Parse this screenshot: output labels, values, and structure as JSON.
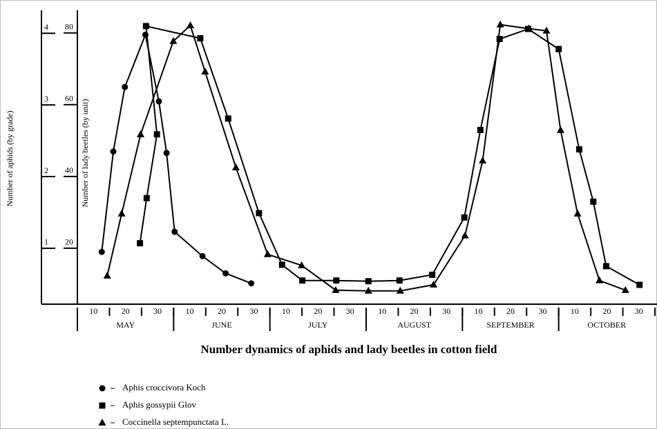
{
  "chart_data": {
    "type": "line",
    "title": "Number dynamics of aphids and lady beetles in cotton field",
    "ylabel": "Number of aphids (by grade)",
    "y2label": "Number of lady beetles (by unit)",
    "xlim": [
      0,
      18
    ],
    "xticks": [
      {
        "value": 0.5,
        "label": "10"
      },
      {
        "value": 1.5,
        "label": "20"
      },
      {
        "value": 2.5,
        "label": "30"
      },
      {
        "value": 3.5,
        "label": "10"
      },
      {
        "value": 4.5,
        "label": "20"
      },
      {
        "value": 5.5,
        "label": "30"
      },
      {
        "value": 6.5,
        "label": "10"
      },
      {
        "value": 7.5,
        "label": "20"
      },
      {
        "value": 8.5,
        "label": "30"
      },
      {
        "value": 9.5,
        "label": "10"
      },
      {
        "value": 10.5,
        "label": "20"
      },
      {
        "value": 11.5,
        "label": "30"
      },
      {
        "value": 12.5,
        "label": "10"
      },
      {
        "value": 13.5,
        "label": "20"
      },
      {
        "value": 14.5,
        "label": "30"
      },
      {
        "value": 15.5,
        "label": "10"
      },
      {
        "value": 16.5,
        "label": "20"
      },
      {
        "value": 17.5,
        "label": "30"
      }
    ],
    "months": [
      "MAY",
      "JUNE",
      "JULY",
      "AUGUST",
      "SEPTEMBER",
      "OCTOBER"
    ],
    "ylim": [
      0.22,
      4.32
    ],
    "yticks": [
      1,
      2,
      3,
      4
    ],
    "y2lim": [
      4.4,
      86.3
    ],
    "y2ticks": [
      20,
      40,
      60,
      80
    ],
    "series": [
      {
        "name": "Aphis croccivora Koch",
        "color": "#000000",
        "marker": "circle",
        "x": [
          0.76,
          1.12,
          1.48,
          2.12,
          2.54,
          2.78,
          3.03,
          3.9,
          4.62,
          5.42
        ],
        "values": [
          0.95,
          2.35,
          3.25,
          3.98,
          3.05,
          2.33,
          1.23,
          0.89,
          0.65,
          0.51
        ]
      },
      {
        "name": "Aphis gossypii Glov",
        "color": "#000000",
        "marker": "square",
        "x": [
          1.95,
          2.16,
          2.48,
          2.14,
          3.83,
          4.7,
          5.66,
          6.38,
          7.01,
          8.07,
          9.07,
          10.04,
          11.06,
          12.06,
          12.56,
          13.16,
          14.05,
          15.0,
          15.64,
          16.08,
          16.48,
          17.52
        ],
        "values": [
          1.07,
          1.7,
          2.59,
          4.1,
          3.93,
          2.81,
          1.49,
          0.77,
          0.55,
          0.55,
          0.54,
          0.55,
          0.63,
          1.43,
          2.65,
          3.92,
          4.06,
          3.78,
          2.38,
          1.65,
          0.75,
          0.49
        ]
      },
      {
        "name": "Coccinella septempunctata L.",
        "color": "#000000",
        "marker": "triangle",
        "axis": "y2",
        "x": [
          0.93,
          1.38,
          1.97,
          2.99,
          3.52,
          3.98,
          4.94,
          5.93,
          6.99,
          8.05,
          9.07,
          10.06,
          11.1,
          12.08,
          12.63,
          13.18,
          14.07,
          14.62,
          15.06,
          15.59,
          16.27,
          17.08
        ],
        "values": [
          12.3,
          29.6,
          51.7,
          77.7,
          82.1,
          69.2,
          42.5,
          18.3,
          15.2,
          8.3,
          8.1,
          8.1,
          9.8,
          23.5,
          44.4,
          82.3,
          81.2,
          80.6,
          52.9,
          29.6,
          11.0,
          8.3
        ]
      }
    ]
  }
}
